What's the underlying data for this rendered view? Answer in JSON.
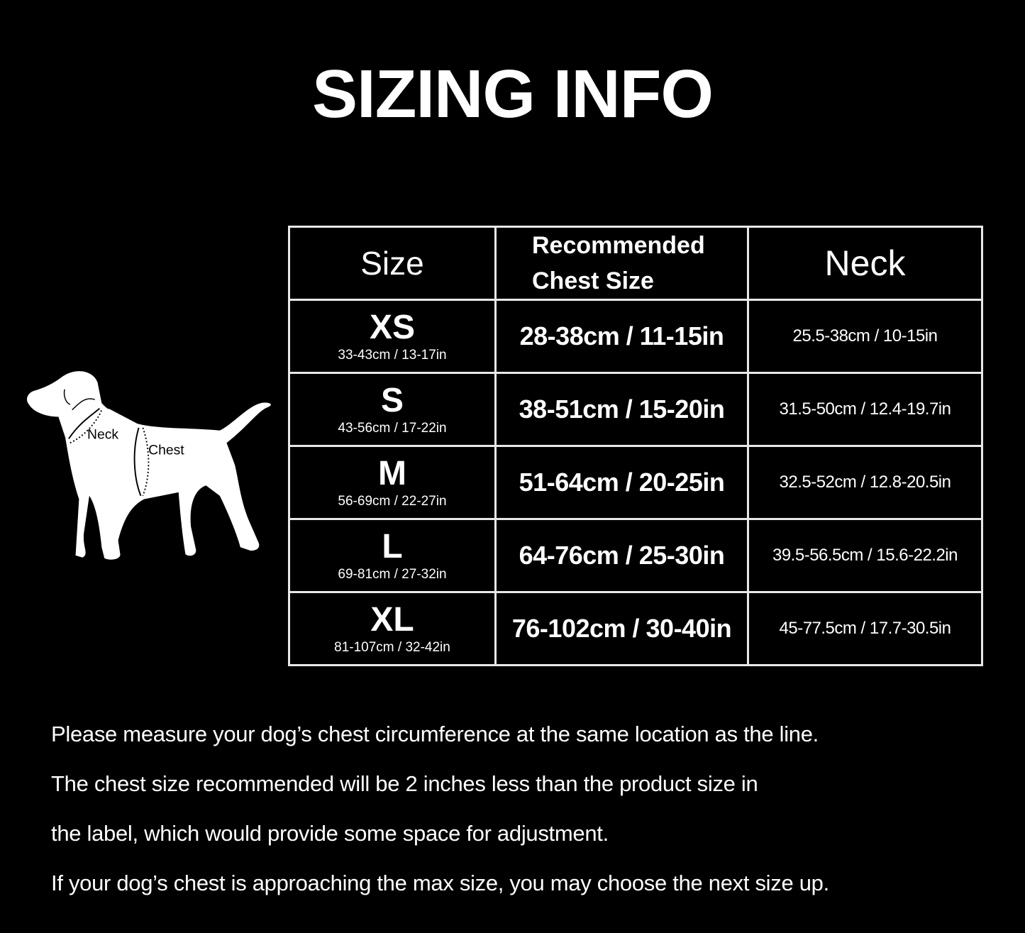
{
  "title": "SIZING INFO",
  "diagram": {
    "neck_label": "Neck",
    "chest_label": "Chest"
  },
  "table": {
    "headers": {
      "size": "Size",
      "chest_line1": "Recommended",
      "chest_line2": "Chest Size",
      "neck": "Neck"
    },
    "rows": [
      {
        "size": "XS",
        "product_size": "33-43cm / 13-17in",
        "chest": "28-38cm / 11-15in",
        "neck": "25.5-38cm / 10-15in"
      },
      {
        "size": "S",
        "product_size": "43-56cm / 17-22in",
        "chest": "38-51cm / 15-20in",
        "neck": "31.5-50cm / 12.4-19.7in"
      },
      {
        "size": "M",
        "product_size": "56-69cm / 22-27in",
        "chest": "51-64cm / 20-25in",
        "neck": "32.5-52cm / 12.8-20.5in"
      },
      {
        "size": "L",
        "product_size": "69-81cm / 27-32in",
        "chest": "64-76cm / 25-30in",
        "neck": "39.5-56.5cm / 15.6-22.2in"
      },
      {
        "size": "XL",
        "product_size": "81-107cm / 32-42in",
        "chest": "76-102cm / 30-40in",
        "neck": "45-77.5cm / 17.7-30.5in"
      }
    ]
  },
  "notes": [
    "Please measure your dog’s chest circumference at the same location as the line.",
    "The chest size recommended will be 2 inches less than the product size in",
    "the label, which would provide some space for adjustment.",
    "If your dog’s chest is approaching the max size, you may choose the next size up."
  ],
  "colors": {
    "background": "#000000",
    "foreground": "#ffffff"
  }
}
